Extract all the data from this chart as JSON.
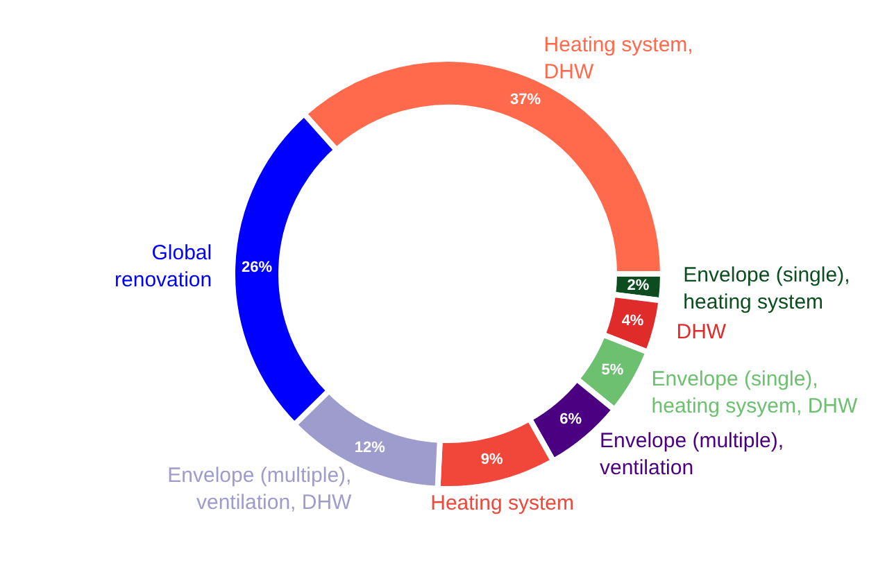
{
  "chart_data": {
    "type": "donut",
    "categories": [
      "Heating system,\nDHW",
      "Envelope (single),\nheating system",
      "DHW",
      "Envelope (single),\nheating sysyem, DHW",
      "Envelope (multiple),\nventilation",
      "Heating system",
      "Envelope (multiple),\nventilation, DHW",
      "Global\nrenovation"
    ],
    "values": [
      37,
      2,
      4,
      5,
      6,
      9,
      12,
      26
    ],
    "value_labels": [
      "37%",
      "2%",
      "4%",
      "5%",
      "6%",
      "9%",
      "12%",
      "26%"
    ],
    "colors": [
      "#ff6a4d",
      "#0b4d1e",
      "#e02b2b",
      "#6cc070",
      "#4b0082",
      "#f0473a",
      "#9e9ccc",
      "#0000ff"
    ]
  }
}
